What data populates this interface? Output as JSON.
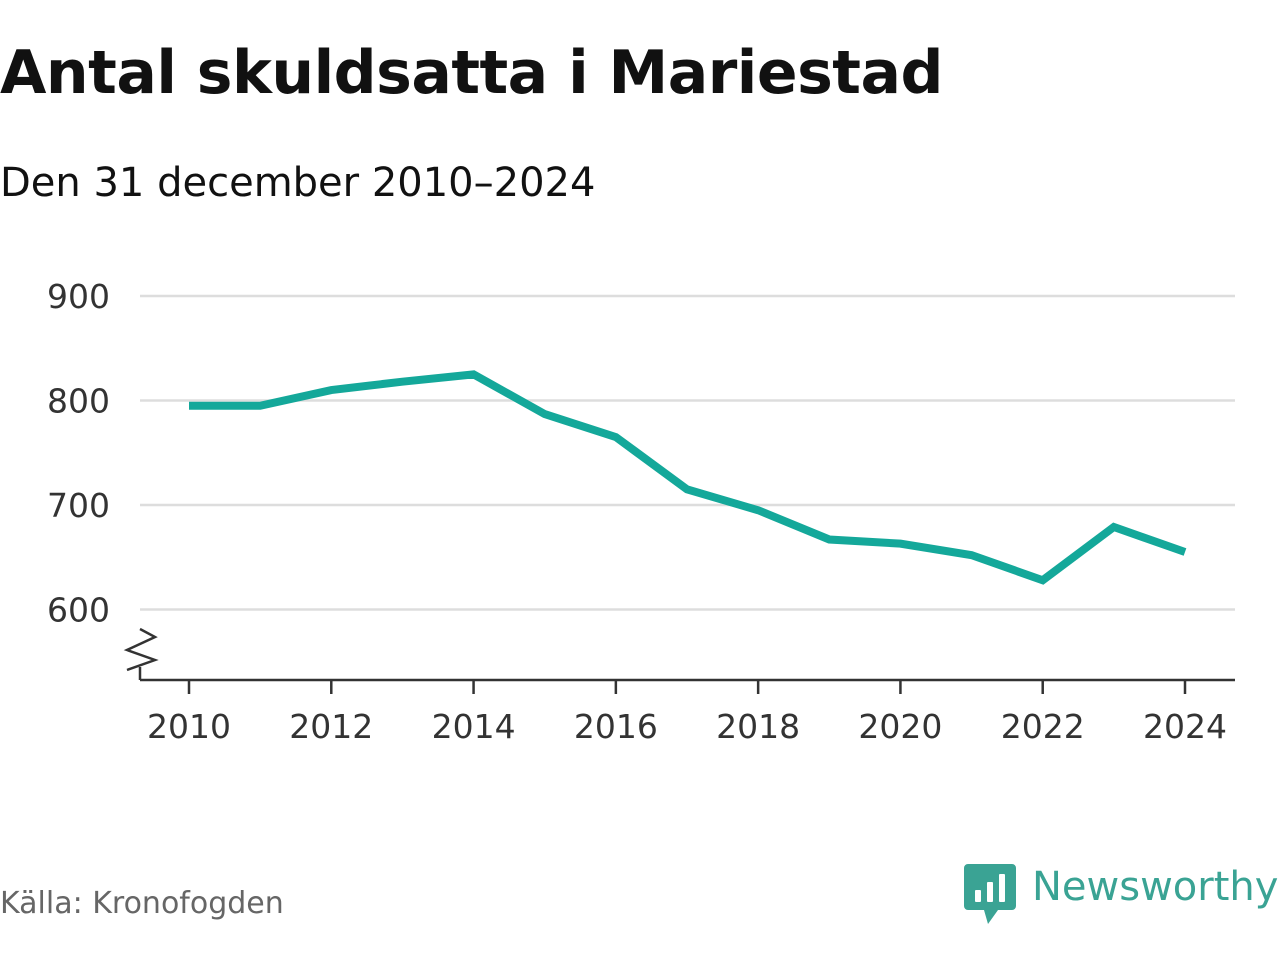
{
  "chart_data": {
    "type": "line",
    "title": "Antal skuldsatta i Mariestad",
    "subtitle": "Den 31 december 2010–2024",
    "xlabel": "",
    "ylabel": "",
    "x": [
      2010,
      2011,
      2012,
      2013,
      2014,
      2015,
      2016,
      2017,
      2018,
      2019,
      2020,
      2021,
      2022,
      2023,
      2024
    ],
    "series": [
      {
        "name": "Antal skuldsatta",
        "values": [
          795,
          795,
          810,
          818,
          825,
          787,
          765,
          715,
          695,
          667,
          663,
          652,
          628,
          679,
          655
        ],
        "color": "#14a89a"
      }
    ],
    "ylim": [
      535,
      900
    ],
    "yticks": [
      600,
      700,
      800,
      900
    ],
    "xticks": [
      2010,
      2012,
      2014,
      2016,
      2018,
      2020,
      2022,
      2024
    ],
    "xtick_labels": [
      "2010",
      "2012",
      "2014",
      "2016",
      "2018",
      "2020",
      "2022",
      "2024"
    ],
    "ytick_labels": [
      "600",
      "700",
      "800",
      "900"
    ],
    "axis_break": true,
    "grid": true,
    "legend": "none"
  },
  "footer": {
    "source": "Källa: Kronofogden",
    "brand": "Newsworthy"
  },
  "colors": {
    "line": "#14a89a",
    "grid": "#dddddd",
    "axis": "#333333",
    "brand": "#3aa394",
    "source_text": "#666666"
  },
  "icons": {
    "brand_logo": "newsworthy-logo-icon"
  }
}
